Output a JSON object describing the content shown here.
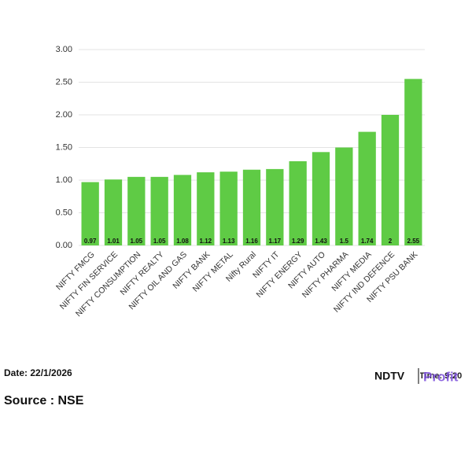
{
  "chart_data": {
    "type": "bar",
    "categories": [
      "NIFTY FMCG",
      "NIFTY FIN SERVICE",
      "NIFTY CONSUMPTION",
      "NIFTY REALTY",
      "NIFTY OIL AND GAS",
      "NIFTY BANK",
      "NIFTY METAL",
      "Nifty Rural",
      "NIFTY IT",
      "NIFTY ENERGY",
      "NIFTY AUTO",
      "NIFTY PHARMA",
      "NIFTY MEDIA",
      "NIFTY IND DEFENCE",
      "NIFTY PSU BANK"
    ],
    "values": [
      0.97,
      1.01,
      1.05,
      1.05,
      1.08,
      1.12,
      1.13,
      1.16,
      1.17,
      1.29,
      1.43,
      1.5,
      1.74,
      2,
      2.55
    ],
    "color": "#5fcb45",
    "ylim": [
      0,
      3
    ],
    "yticks": [
      {
        "value": 0,
        "label": "0.00"
      },
      {
        "value": 0.5,
        "label": "0.50"
      },
      {
        "value": 1,
        "label": "1.00"
      },
      {
        "value": 1.5,
        "label": "1.50"
      },
      {
        "value": 2,
        "label": "2.00"
      },
      {
        "value": 2.5,
        "label": "2.50"
      },
      {
        "value": 3,
        "label": "3.00"
      }
    ],
    "grid": true
  },
  "footer": {
    "date": "Date: 22/1/2026",
    "source": "Source : NSE",
    "brand": "NDTV",
    "brand_sub": "Profit",
    "time": "Time: 9:20"
  }
}
